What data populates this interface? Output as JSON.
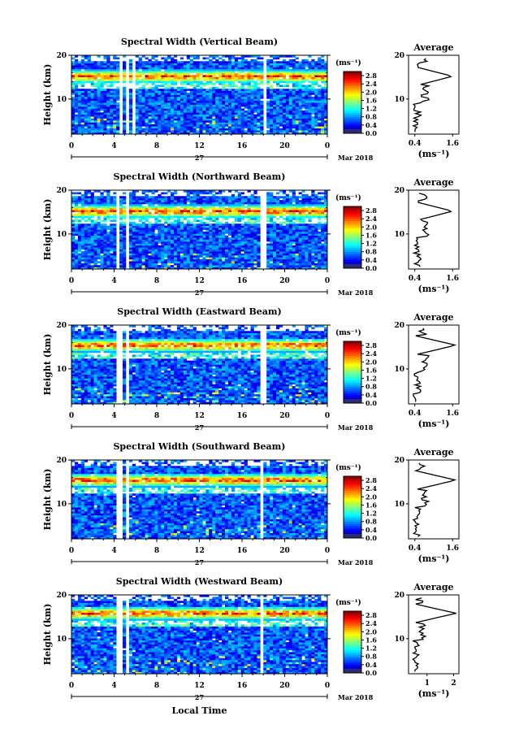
{
  "chart_data": [
    {
      "type": "heatmap",
      "title": "Spectral Width (Vertical Beam)",
      "ylabel": "Height (km)",
      "x_ticks": [
        "0",
        "4",
        "8",
        "12",
        "16",
        "20",
        "0"
      ],
      "y_ticks": [
        "20",
        "10"
      ],
      "xlim": [
        0,
        24
      ],
      "ylim": [
        2,
        20
      ],
      "date_day": "27",
      "date_label": "Mar 2018",
      "colorbar": {
        "unit": "(ms⁻¹)",
        "ticks": [
          "2.8",
          "2.4",
          "2.0",
          "1.6",
          "1.2",
          "0.8",
          "0.4",
          "0.0"
        ],
        "range": [
          0,
          3.0
        ]
      },
      "layer": {
        "center_km": 15.2,
        "peak": 2.9
      },
      "gaps_hours": [
        4.6,
        5.3,
        5.8,
        18.2
      ],
      "average": {
        "title": "Average",
        "x_ticks": [
          "0.4",
          "1.6"
        ],
        "y_ticks": [
          "20",
          "10"
        ],
        "xlabel": "(ms⁻¹)",
        "xlim": [
          0.2,
          1.8
        ],
        "peak": 1.6
      }
    },
    {
      "type": "heatmap",
      "title": "Spectral Width (Northward Beam)",
      "ylabel": "Height (km)",
      "x_ticks": [
        "0",
        "4",
        "8",
        "12",
        "16",
        "20",
        "0"
      ],
      "y_ticks": [
        "20",
        "10"
      ],
      "xlim": [
        0,
        24
      ],
      "ylim": [
        2,
        20
      ],
      "date_day": "27",
      "date_label": "Mar 2018",
      "colorbar": {
        "unit": "(ms⁻¹)",
        "ticks": [
          "2.8",
          "2.4",
          "2.0",
          "1.6",
          "1.2",
          "0.8",
          "0.4",
          "0.0"
        ],
        "range": [
          0,
          3.0
        ]
      },
      "layer": {
        "center_km": 15.2,
        "peak": 2.9
      },
      "gaps_hours": [
        4.4,
        5.2,
        18.0
      ],
      "average": {
        "title": "Average",
        "x_ticks": [
          "0.4",
          "1.6"
        ],
        "y_ticks": [
          "20",
          "10"
        ],
        "xlabel": "(ms⁻¹)",
        "xlim": [
          0.2,
          1.8
        ],
        "peak": 1.6
      }
    },
    {
      "type": "heatmap",
      "title": "Spectral Width (Eastward Beam)",
      "ylabel": "Height (km)",
      "x_ticks": [
        "0",
        "4",
        "8",
        "12",
        "16",
        "20",
        "0"
      ],
      "y_ticks": [
        "20",
        "10"
      ],
      "xlim": [
        0,
        24
      ],
      "ylim": [
        2,
        20
      ],
      "date_day": "27",
      "date_label": "Mar 2018",
      "colorbar": {
        "unit": "(ms⁻¹)",
        "ticks": [
          "2.8",
          "2.4",
          "2.0",
          "1.6",
          "1.2",
          "0.8",
          "0.4",
          "0.0"
        ],
        "range": [
          0,
          3.0
        ]
      },
      "layer": {
        "center_km": 15.4,
        "peak": 3.0
      },
      "gaps_hours": [
        4.5,
        5.2,
        18.0
      ],
      "average": {
        "title": "Average",
        "x_ticks": [
          "0.4",
          "1.6"
        ],
        "y_ticks": [
          "20",
          "10"
        ],
        "xlabel": "(ms⁻¹)",
        "xlim": [
          0.2,
          1.8
        ],
        "peak": 1.7
      }
    },
    {
      "type": "heatmap",
      "title": "Spectral Width (Southward Beam)",
      "ylabel": "Height (km)",
      "x_ticks": [
        "0",
        "4",
        "8",
        "12",
        "16",
        "20",
        "0"
      ],
      "y_ticks": [
        "20",
        "10"
      ],
      "xlim": [
        0,
        24
      ],
      "ylim": [
        2,
        20
      ],
      "date_day": "27",
      "date_label": "Mar 2018",
      "colorbar": {
        "unit": "(ms⁻¹)",
        "ticks": [
          "2.8",
          "2.4",
          "2.0",
          "1.6",
          "1.2",
          "0.8",
          "0.4",
          "0.0"
        ],
        "range": [
          0,
          3.0
        ]
      },
      "layer": {
        "center_km": 15.4,
        "peak": 2.8
      },
      "gaps_hours": [
        4.5,
        5.2,
        17.8
      ],
      "average": {
        "title": "Average",
        "x_ticks": [
          "0.4",
          "1.6"
        ],
        "y_ticks": [
          "20",
          "10"
        ],
        "xlabel": "(ms⁻¹)",
        "xlim": [
          0.2,
          1.8
        ],
        "peak": 1.7
      }
    },
    {
      "type": "heatmap",
      "title": "Spectral Width (Westward Beam)",
      "ylabel": "Height (km)",
      "xlabel": "Local Time",
      "x_ticks": [
        "0",
        "4",
        "8",
        "12",
        "16",
        "20",
        "0"
      ],
      "y_ticks": [
        "20",
        "10"
      ],
      "xlim": [
        0,
        24
      ],
      "ylim": [
        2,
        20
      ],
      "date_day": "27",
      "date_label": "Mar 2018",
      "colorbar": {
        "unit": "(ms⁻¹)",
        "ticks": [
          "2.8",
          "2.4",
          "2.0",
          "1.6",
          "1.2",
          "0.8",
          "0.4",
          "0.0"
        ],
        "range": [
          0,
          3.0
        ]
      },
      "layer": {
        "center_km": 15.8,
        "peak": 3.0
      },
      "gaps_hours": [
        4.5,
        5.2,
        17.9
      ],
      "average": {
        "title": "Average",
        "x_ticks": [
          "1",
          "2"
        ],
        "y_ticks": [
          "20",
          "10"
        ],
        "xlabel": "(ms⁻¹)",
        "xlim": [
          0.3,
          2.2
        ],
        "peak": 2.1
      }
    }
  ]
}
